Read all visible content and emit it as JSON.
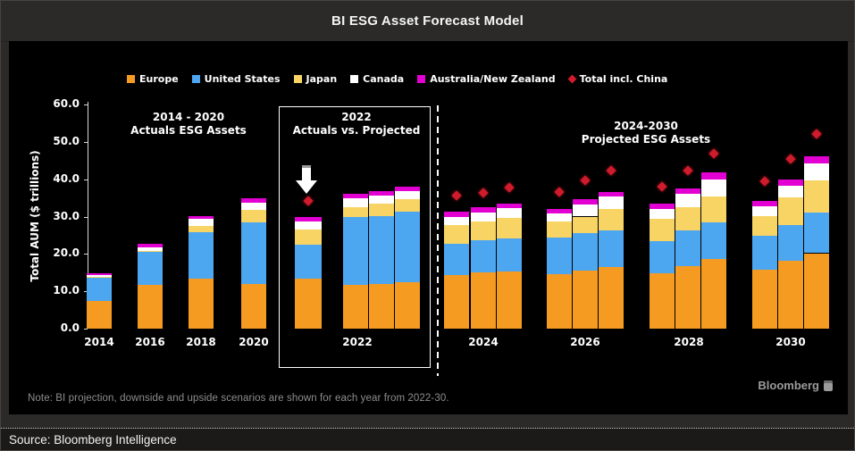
{
  "title": "BI ESG Asset Forecast Model",
  "legend": [
    {
      "label": "Europe",
      "color": "#f59b22",
      "marker": "square"
    },
    {
      "label": "United States",
      "color": "#4da6f0",
      "marker": "square"
    },
    {
      "label": "Japan",
      "color": "#f7d464",
      "marker": "square"
    },
    {
      "label": "Canada",
      "color": "#ffffff",
      "marker": "square"
    },
    {
      "label": "Australia/New Zealand",
      "color": "#e200d2",
      "marker": "square"
    },
    {
      "label": "Total incl. China",
      "color": "#cf1b2b",
      "marker": "diamond"
    }
  ],
  "sections": [
    {
      "line1": "2014 - 2020",
      "line2": "Actuals ESG Assets"
    },
    {
      "line1": "2022",
      "line2": "Actuals vs. Projected"
    },
    {
      "line1": "2024-2030",
      "line2": "Projected ESG Assets"
    }
  ],
  "y_axis": {
    "label": "Total AUM ($ trillions)",
    "ticks": [
      "60.0",
      "50.0",
      "40.0",
      "30.0",
      "20.0",
      "10.0",
      "0.0"
    ]
  },
  "note": "Note: BI projection, downside and upside scenarios are shown for each year from 2022-30.",
  "logo": "Bloomberg",
  "source": "Source: Bloomberg Intelligence",
  "chart_data": {
    "type": "bar",
    "stacked": true,
    "title": "BI ESG Asset Forecast Model",
    "ylabel": "Total AUM ($ trillions)",
    "ylim": [
      0,
      60
    ],
    "ytick_interval": 10,
    "grid": false,
    "legend_position": "top",
    "stack_series": [
      "Europe",
      "United States",
      "Japan",
      "Canada",
      "Australia/New Zealand"
    ],
    "colors": [
      "#f59b22",
      "#4da6f0",
      "#f7d464",
      "#ffffff",
      "#e200d2"
    ],
    "scatter_series": "Total incl. China",
    "scatter_color": "#cf1b2b",
    "x_labels": [
      "2014",
      "2016",
      "2018",
      "2020",
      "2022",
      "2024",
      "2026",
      "2028",
      "2030"
    ],
    "bars": [
      {
        "group": "2014",
        "scenario": "actual",
        "values": [
          7.4,
          6.2,
          0.2,
          0.6,
          0.5
        ],
        "total_incl_china": null
      },
      {
        "group": "2016",
        "scenario": "actual",
        "values": [
          11.8,
          8.8,
          0.3,
          0.8,
          0.9
        ],
        "total_incl_china": null
      },
      {
        "group": "2018",
        "scenario": "actual",
        "values": [
          13.5,
          12.2,
          1.8,
          1.8,
          0.9
        ],
        "total_incl_china": null
      },
      {
        "group": "2020",
        "scenario": "actual",
        "values": [
          12.0,
          16.5,
          3.3,
          2.0,
          1.2
        ],
        "total_incl_china": null
      },
      {
        "group": "2022",
        "scenario": "actual",
        "values": [
          13.4,
          9.0,
          4.1,
          2.1,
          1.2
        ],
        "total_incl_china": 34.2
      },
      {
        "group": "2022",
        "scenario": "downside",
        "values": [
          11.8,
          18.0,
          2.8,
          2.2,
          1.2
        ],
        "total_incl_china": null
      },
      {
        "group": "2022",
        "scenario": "base",
        "values": [
          12.0,
          18.2,
          3.2,
          2.2,
          1.2
        ],
        "total_incl_china": null
      },
      {
        "group": "2022",
        "scenario": "upside",
        "values": [
          12.4,
          18.9,
          3.3,
          2.2,
          1.2
        ],
        "total_incl_china": null
      },
      {
        "group": "2024",
        "scenario": "downside",
        "values": [
          14.4,
          8.4,
          4.9,
          2.3,
          1.3
        ],
        "total_incl_china": 35.6
      },
      {
        "group": "2024",
        "scenario": "base",
        "values": [
          15.0,
          8.7,
          4.9,
          2.4,
          1.4
        ],
        "total_incl_china": 36.4
      },
      {
        "group": "2024",
        "scenario": "upside",
        "values": [
          15.3,
          8.9,
          5.5,
          2.5,
          1.2
        ],
        "total_incl_china": 37.8
      },
      {
        "group": "2026",
        "scenario": "downside",
        "values": [
          14.6,
          9.8,
          4.4,
          2.0,
          1.3
        ],
        "total_incl_china": 36.6
      },
      {
        "group": "2026",
        "scenario": "base",
        "values": [
          15.6,
          10.0,
          4.4,
          3.2,
          1.4
        ],
        "total_incl_china": 39.6
      },
      {
        "group": "2026",
        "scenario": "upside",
        "values": [
          16.4,
          9.8,
          5.9,
          3.2,
          1.3
        ],
        "total_incl_china": 42.2
      },
      {
        "group": "2028",
        "scenario": "downside",
        "values": [
          14.9,
          8.5,
          5.9,
          2.7,
          1.4
        ],
        "total_incl_china": 38.0
      },
      {
        "group": "2028",
        "scenario": "base",
        "values": [
          16.8,
          9.4,
          6.4,
          3.4,
          1.6
        ],
        "total_incl_china": 42.2
      },
      {
        "group": "2028",
        "scenario": "upside",
        "values": [
          18.6,
          9.9,
          6.9,
          4.6,
          1.8
        ],
        "total_incl_china": 46.8
      },
      {
        "group": "2030",
        "scenario": "downside",
        "values": [
          15.8,
          9.0,
          5.4,
          2.6,
          1.4
        ],
        "total_incl_china": 39.4
      },
      {
        "group": "2030",
        "scenario": "base",
        "values": [
          18.1,
          9.7,
          7.4,
          3.0,
          1.8
        ],
        "total_incl_china": 45.4
      },
      {
        "group": "2030",
        "scenario": "upside",
        "values": [
          20.2,
          10.8,
          8.8,
          4.4,
          2.0
        ],
        "total_incl_china": 52.2
      }
    ]
  }
}
